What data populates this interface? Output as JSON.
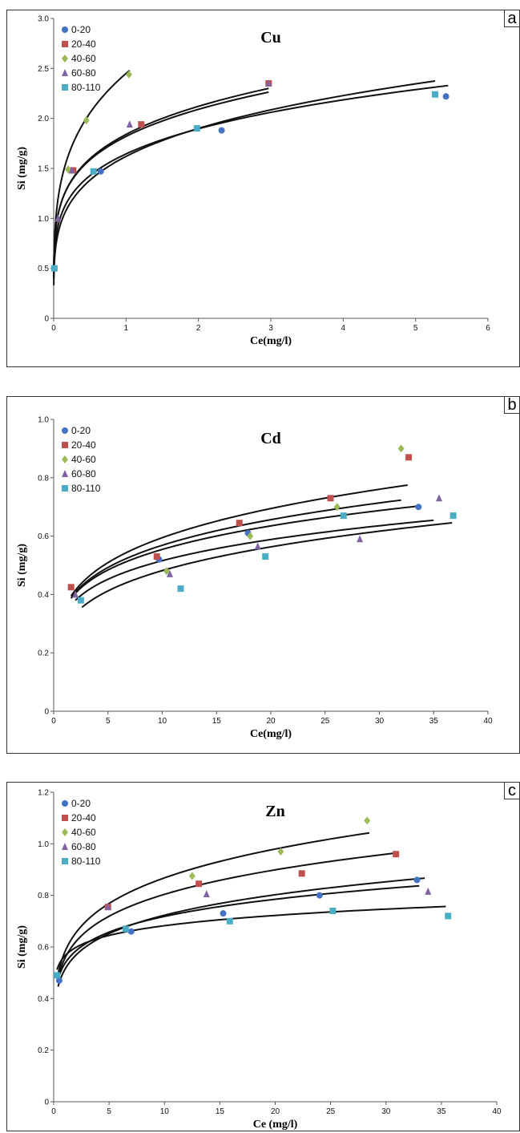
{
  "chart_data": [
    {
      "type": "scatter",
      "panel_letter": "a",
      "title": "Cu",
      "xlabel": "Ce(mg/l)",
      "ylabel": "Si (mg/g)",
      "xlim": [
        0,
        6
      ],
      "ylim": [
        0,
        3
      ],
      "xticks": [
        0,
        1,
        2,
        3,
        4,
        5,
        6
      ],
      "yticks": [
        0,
        0.5,
        1.0,
        1.5,
        2.0,
        2.5,
        3.0
      ],
      "ytick_decimals": 1,
      "legend_position": "top-left",
      "series": [
        {
          "name": "0-20",
          "marker": "circle",
          "color": "#4472c4",
          "points": [
            [
              0.65,
              1.47
            ],
            [
              2.32,
              1.88
            ],
            [
              5.42,
              2.22
            ]
          ],
          "curve": {
            "k": 1.645,
            "n": 0.205,
            "xmin": 0.001,
            "xmax": 5.45
          }
        },
        {
          "name": "20-40",
          "marker": "square",
          "color": "#c0504d",
          "points": [
            [
              0.27,
              1.48
            ],
            [
              1.21,
              1.94
            ],
            [
              2.97,
              2.35
            ]
          ],
          "curve": {
            "k": 1.82,
            "n": 0.2,
            "xmin": 0.001,
            "xmax": 2.97
          }
        },
        {
          "name": "40-60",
          "marker": "diamond",
          "color": "#9bbb59",
          "points": [
            [
              0.2,
              1.49
            ],
            [
              0.45,
              1.98
            ],
            [
              1.04,
              2.44
            ]
          ],
          "curve": {
            "k": 2.45,
            "n": 0.255,
            "xmin": 0.001,
            "xmax": 1.05
          }
        },
        {
          "name": "60-80",
          "marker": "triangle",
          "color": "#8064a2",
          "points": [
            [
              0.06,
              1.0
            ],
            [
              0.25,
              1.48
            ],
            [
              1.05,
              1.94
            ],
            [
              2.97,
              2.35
            ]
          ],
          "curve": {
            "k": 1.84,
            "n": 0.205,
            "xmin": 0.001,
            "xmax": 2.97
          }
        },
        {
          "name": "80-110",
          "marker": "square",
          "color": "#4bacc6",
          "points": [
            [
              0.01,
              0.5
            ],
            [
              0.55,
              1.47
            ],
            [
              1.98,
              1.9
            ],
            [
              5.27,
              2.24
            ]
          ],
          "curve": {
            "k": 1.62,
            "n": 0.23,
            "xmin": 0.001,
            "xmax": 5.27
          }
        }
      ]
    },
    {
      "type": "scatter",
      "panel_letter": "b",
      "title": "Cd",
      "xlabel": "Ce(mg/l)",
      "ylabel": "Si (mg/g)",
      "xlim": [
        0,
        40
      ],
      "ylim": [
        0,
        1.0
      ],
      "xticks": [
        0,
        5,
        10,
        15,
        20,
        25,
        30,
        35,
        40
      ],
      "yticks": [
        0,
        0.2,
        0.4,
        0.6,
        0.8,
        1.0
      ],
      "ytick_decimals": 1,
      "legend_position": "top-left",
      "series": [
        {
          "name": "0-20",
          "marker": "circle",
          "color": "#4472c4",
          "points": [
            [
              9.7,
              0.52
            ],
            [
              17.9,
              0.61
            ],
            [
              33.6,
              0.7
            ]
          ],
          "curve": {
            "k": 0.353,
            "n": 0.196,
            "xmin": 1.6,
            "xmax": 33.6
          }
        },
        {
          "name": "20-40",
          "marker": "square",
          "color": "#c0504d",
          "points": [
            [
              1.6,
              0.425
            ],
            [
              9.5,
              0.53
            ],
            [
              17.1,
              0.645
            ],
            [
              25.5,
              0.73
            ],
            [
              32.7,
              0.87
            ]
          ],
          "curve": {
            "k": 0.355,
            "n": 0.224,
            "xmin": 1.6,
            "xmax": 32.6
          }
        },
        {
          "name": "40-60",
          "marker": "diamond",
          "color": "#9bbb59",
          "points": [
            [
              10.4,
              0.48
            ],
            [
              18.1,
              0.6
            ],
            [
              26.1,
              0.7
            ],
            [
              32.0,
              0.9
            ]
          ],
          "curve": {
            "k": 0.353,
            "n": 0.207,
            "xmin": 1.8,
            "xmax": 32.0
          }
        },
        {
          "name": "60-80",
          "marker": "triangle",
          "color": "#8064a2",
          "points": [
            [
              2.0,
              0.4
            ],
            [
              10.7,
              0.47
            ],
            [
              18.8,
              0.565
            ],
            [
              28.2,
              0.59
            ],
            [
              35.5,
              0.73
            ]
          ],
          "curve": {
            "k": 0.333,
            "n": 0.19,
            "xmin": 2.0,
            "xmax": 35.0
          }
        },
        {
          "name": "80-110",
          "marker": "square",
          "color": "#4bacc6",
          "points": [
            [
              2.5,
              0.38
            ],
            [
              11.7,
              0.42
            ],
            [
              19.5,
              0.53
            ],
            [
              26.7,
              0.67
            ],
            [
              36.8,
              0.67
            ]
          ],
          "curve": {
            "k": 0.287,
            "n": 0.225,
            "xmin": 2.6,
            "xmax": 36.7
          }
        }
      ]
    },
    {
      "type": "scatter",
      "panel_letter": "c",
      "title": "Zn",
      "xlabel": "Ce (mg/l)",
      "ylabel": "Si (mg/g)",
      "xlim": [
        0,
        40
      ],
      "ylim": [
        0,
        1.2
      ],
      "xticks": [
        0,
        5,
        10,
        15,
        20,
        25,
        30,
        35,
        40
      ],
      "yticks": [
        0,
        0.2,
        0.4,
        0.6,
        0.8,
        1.0,
        1.2
      ],
      "ytick_decimals": 1,
      "legend_position": "top-left",
      "series": [
        {
          "name": "0-20",
          "marker": "circle",
          "color": "#4472c4",
          "points": [
            [
              0.5,
              0.47
            ],
            [
              7.0,
              0.66
            ],
            [
              15.3,
              0.73
            ],
            [
              24.0,
              0.8
            ],
            [
              32.8,
              0.86
            ]
          ],
          "curve": {
            "k": 0.512,
            "n": 0.15,
            "xmin": 0.4,
            "xmax": 33.5
          }
        },
        {
          "name": "20-40",
          "marker": "square",
          "color": "#c0504d",
          "points": [
            [
              4.9,
              0.755
            ],
            [
              13.1,
              0.845
            ],
            [
              22.4,
              0.885
            ],
            [
              30.9,
              0.96
            ]
          ],
          "curve": {
            "k": 0.555,
            "n": 0.161,
            "xmin": 0.4,
            "xmax": 31.0
          }
        },
        {
          "name": "40-60",
          "marker": "diamond",
          "color": "#9bbb59",
          "points": [
            [
              12.5,
              0.875
            ],
            [
              20.5,
              0.97
            ],
            [
              28.3,
              1.09
            ]
          ],
          "curve": {
            "k": 0.58,
            "n": 0.175,
            "xmin": 0.4,
            "xmax": 28.5
          }
        },
        {
          "name": "60-80",
          "marker": "triangle",
          "color": "#8064a2",
          "points": [
            [
              4.9,
              0.755
            ],
            [
              13.8,
              0.805
            ],
            [
              33.8,
              0.815
            ]
          ],
          "curve": {
            "k": 0.535,
            "n": 0.128,
            "xmin": 0.4,
            "xmax": 33.0
          }
        },
        {
          "name": "80-110",
          "marker": "square",
          "color": "#4bacc6",
          "points": [
            [
              0.3,
              0.49
            ],
            [
              6.5,
              0.67
            ],
            [
              15.9,
              0.7
            ],
            [
              25.2,
              0.74
            ],
            [
              35.6,
              0.72
            ]
          ],
          "curve": {
            "k": 0.565,
            "n": 0.082,
            "xmin": 0.3,
            "xmax": 35.4
          }
        }
      ]
    }
  ]
}
